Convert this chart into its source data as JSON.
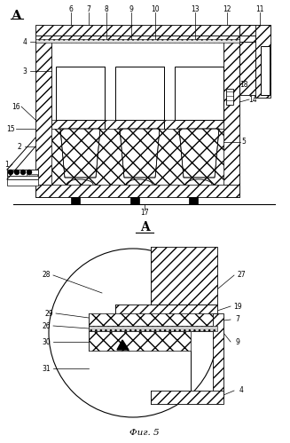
{
  "bg_color": "#ffffff",
  "line_color": "#000000",
  "fig_width": 3.27,
  "fig_height": 4.99,
  "dpi": 100,
  "fig_label": "Фиг. 5"
}
